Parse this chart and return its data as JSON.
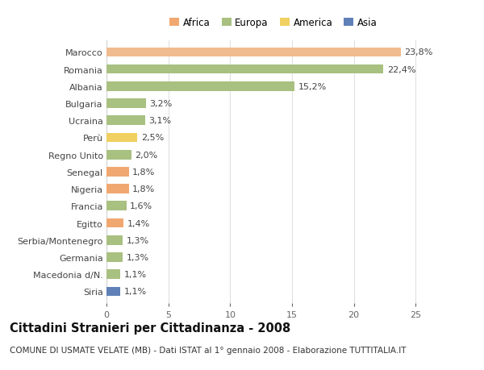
{
  "categories": [
    "Marocco",
    "Romania",
    "Albania",
    "Bulgaria",
    "Ucraina",
    "Perù",
    "Regno Unito",
    "Senegal",
    "Nigeria",
    "Francia",
    "Egitto",
    "Serbia/Montenegro",
    "Germania",
    "Macedonia d/N.",
    "Siria"
  ],
  "values": [
    23.8,
    22.4,
    15.2,
    3.2,
    3.1,
    2.5,
    2.0,
    1.8,
    1.8,
    1.6,
    1.4,
    1.3,
    1.3,
    1.1,
    1.1
  ],
  "labels": [
    "23,8%",
    "22,4%",
    "15,2%",
    "3,2%",
    "3,1%",
    "2,5%",
    "2,0%",
    "1,8%",
    "1,8%",
    "1,6%",
    "1,4%",
    "1,3%",
    "1,3%",
    "1,1%",
    "1,1%"
  ],
  "colors": [
    "#f0bb8e",
    "#a8c080",
    "#a8c080",
    "#a8c080",
    "#a8c080",
    "#f0d060",
    "#a8c080",
    "#f0a870",
    "#f0a870",
    "#a8c080",
    "#f0a870",
    "#a8c080",
    "#a8c080",
    "#a8c080",
    "#6080b8"
  ],
  "continent_colors": {
    "Africa": "#f0a870",
    "Europa": "#a8c080",
    "America": "#f0d060",
    "Asia": "#6080b8"
  },
  "legend_order": [
    "Africa",
    "Europa",
    "America",
    "Asia"
  ],
  "title": "Cittadini Stranieri per Cittadinanza - 2008",
  "subtitle": "COMUNE DI USMATE VELATE (MB) - Dati ISTAT al 1° gennaio 2008 - Elaborazione TUTTITALIA.IT",
  "xlim": [
    0,
    27
  ],
  "xticks": [
    0,
    5,
    10,
    15,
    20,
    25
  ],
  "background_color": "#ffffff",
  "grid_color": "#e0e0e0",
  "bar_height": 0.55,
  "title_fontsize": 10.5,
  "subtitle_fontsize": 7.5,
  "tick_fontsize": 8,
  "label_fontsize": 8,
  "legend_fontsize": 8.5
}
